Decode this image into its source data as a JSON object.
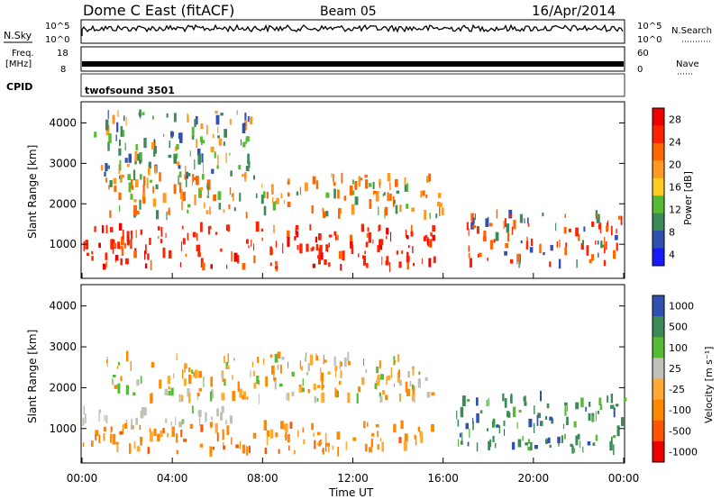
{
  "header": {
    "station": "Dome C East (fitACF)",
    "beam": "Beam 05",
    "date": "16/Apr/2014"
  },
  "labels": {
    "nsky": "N.Sky",
    "freq_line1": "Freq.",
    "freq_line2": "[MHz]",
    "cpid": "CPID",
    "nsearch": "N.Search",
    "nave": "Nave",
    "program": "twofsound 3501",
    "x_axis_title": "Time UT",
    "y_axis_title": "Slant Range [km]",
    "power_title": "Power [dB]",
    "velocity_title": "Velocity [m s⁻¹]"
  },
  "colors": {
    "power_scale": [
      "#1a1aff",
      "#3050b0",
      "#3c8a5a",
      "#55bb33",
      "#ffcc22",
      "#ff9922",
      "#ff6600",
      "#ff2200",
      "#ee0000"
    ],
    "velocity_scale": [
      "#ee0000",
      "#ff5500",
      "#ff8800",
      "#ffaa33",
      "#c0c0b8",
      "#55bb33",
      "#3c8a5a",
      "#3050b0"
    ],
    "background": "#ffffff",
    "trace": "#000000"
  },
  "chart_data": [
    {
      "type": "line",
      "name": "noise-sky-search",
      "x_ticks": [
        "00:00",
        "04:00",
        "08:00",
        "12:00",
        "16:00",
        "20:00",
        "00:00"
      ],
      "left_ticks": [
        "10^5",
        "10^0"
      ],
      "right_ticks": [
        "10^5",
        "10^0"
      ]
    },
    {
      "type": "line",
      "name": "frequency-nave",
      "left_ticks": [
        "18",
        "8"
      ],
      "right_ticks": [
        "60",
        "0"
      ],
      "freq_mhz_approx": 10,
      "nave_approx": 20
    },
    {
      "type": "heatmap",
      "name": "power",
      "x_range_hours": [
        0,
        24
      ],
      "y_range_km": [
        180,
        4500
      ],
      "y_ticks": [
        1000,
        2000,
        3000,
        4000
      ],
      "x_ticks": [
        "00:00",
        "04:00",
        "08:00",
        "12:00",
        "16:00",
        "20:00",
        "00:00"
      ],
      "color_bar_ticks": [
        "28",
        "24",
        "20",
        "16",
        "12",
        "8",
        "4"
      ],
      "bands": [
        {
          "t_start": 0.0,
          "t_end": 16.0,
          "r_min": 420,
          "r_max": 1450,
          "level": "high"
        },
        {
          "t_start": 17.0,
          "t_end": 24.0,
          "r_min": 500,
          "r_max": 1750,
          "level": "mid-high"
        },
        {
          "t_start": 1.0,
          "t_end": 16.0,
          "r_min": 1700,
          "r_max": 2700,
          "level": "mid"
        },
        {
          "t_start": 0.5,
          "t_end": 7.5,
          "r_min": 2700,
          "r_max": 4300,
          "level": "low"
        }
      ]
    },
    {
      "type": "heatmap",
      "name": "velocity",
      "x_range_hours": [
        0,
        24
      ],
      "y_range_km": [
        180,
        4500
      ],
      "y_ticks": [
        1000,
        2000,
        3000,
        4000
      ],
      "x_ticks": [
        "00:00",
        "04:00",
        "08:00",
        "12:00",
        "16:00",
        "20:00",
        "00:00"
      ],
      "color_bar_ticks": [
        "1000",
        "500",
        "100",
        "25",
        "-25",
        "-100",
        "-500",
        "-1000"
      ],
      "bands": [
        {
          "t_start": 0.0,
          "t_end": 15.5,
          "r_min": 420,
          "r_max": 1100,
          "level": "negative"
        },
        {
          "t_start": 0.0,
          "t_end": 7.0,
          "r_min": 1100,
          "r_max": 1500,
          "level": "near-zero"
        },
        {
          "t_start": 16.5,
          "t_end": 24.0,
          "r_min": 450,
          "r_max": 1800,
          "level": "positive"
        },
        {
          "t_start": 1.0,
          "t_end": 15.5,
          "r_min": 1700,
          "r_max": 2800,
          "level": "negative-weak"
        }
      ]
    }
  ]
}
